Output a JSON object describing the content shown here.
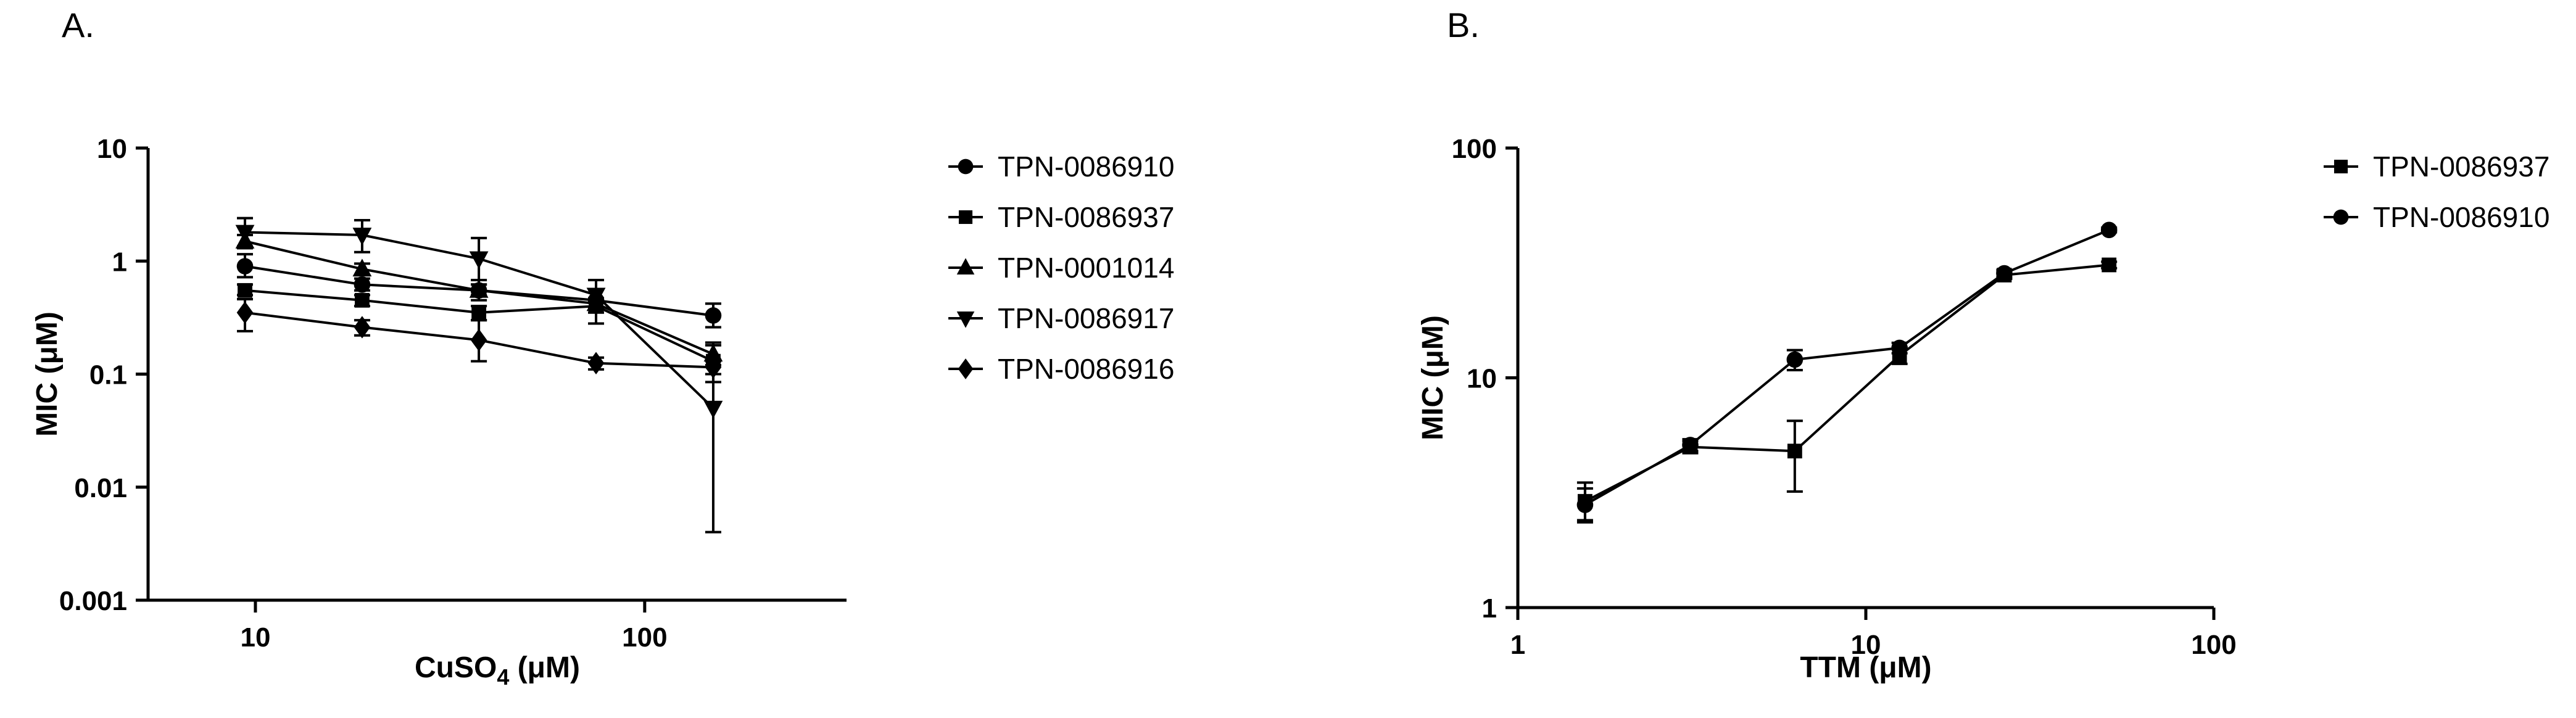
{
  "figure": {
    "background": "#ffffff",
    "ink": "#000000"
  },
  "panels": [
    {
      "label": "A.",
      "chart_data": {
        "type": "line",
        "x_scale": "log",
        "y_scale": "log",
        "xlabel": "CuSO₄ (μM)",
        "xlabel_parts": {
          "pre": "CuSO",
          "sub": "4",
          "post": " (μM)"
        },
        "ylabel": "MIC (μM)",
        "xlim": [
          5.3,
          330
        ],
        "ylim": [
          0.001,
          10
        ],
        "x_ticks": [
          {
            "value": 10,
            "label": "10"
          },
          {
            "value": 100,
            "label": "100"
          }
        ],
        "y_ticks": [
          {
            "value": 10,
            "label": "10"
          },
          {
            "value": 1,
            "label": "1"
          },
          {
            "value": 0.1,
            "label": "0.1"
          },
          {
            "value": 0.01,
            "label": "0.01"
          },
          {
            "value": 0.001,
            "label": "0.001"
          }
        ],
        "grid": false,
        "legend_position": "right",
        "series": [
          {
            "name": "TPN-0086910",
            "marker": "circle",
            "x": [
              9.4,
              18.8,
              37.5,
              75,
              150
            ],
            "y": [
              0.9,
              0.62,
              0.55,
              0.45,
              0.33
            ],
            "err_lo": [
              0.72,
              0.55,
              0.45,
              0.28,
              0.26
            ],
            "err_hi": [
              1.15,
              0.7,
              0.68,
              0.68,
              0.42
            ]
          },
          {
            "name": "TPN-0086937",
            "marker": "square",
            "x": [
              9.4,
              18.8,
              37.5,
              75,
              150
            ],
            "y": [
              0.55,
              0.45,
              0.35,
              0.4,
              0.13
            ],
            "err_lo": [
              0.5,
              0.4,
              0.3,
              0.35,
              0.085
            ],
            "err_hi": [
              0.62,
              0.5,
              0.4,
              0.45,
              0.19
            ]
          },
          {
            "name": "TPN-0001014",
            "marker": "triangle-up",
            "x": [
              9.4,
              18.8,
              37.5,
              75,
              150
            ],
            "y": [
              1.5,
              0.85,
              0.55,
              0.42,
              0.15
            ],
            "err_lo": [
              1.3,
              0.75,
              0.5,
              0.38,
              0.12
            ],
            "err_hi": [
              1.7,
              0.95,
              0.62,
              0.47,
              0.18
            ]
          },
          {
            "name": "TPN-0086917",
            "marker": "triangle-down",
            "x": [
              9.4,
              18.8,
              37.5,
              75,
              150
            ],
            "y": [
              1.8,
              1.7,
              1.05,
              0.5,
              0.05
            ],
            "err_lo": [
              1.35,
              1.2,
              0.62,
              0.45,
              0.004
            ],
            "err_hi": [
              2.4,
              2.3,
              1.6,
              0.56,
              0.1
            ]
          },
          {
            "name": "TPN-0086916",
            "marker": "diamond",
            "x": [
              9.4,
              18.8,
              37.5,
              75,
              150
            ],
            "y": [
              0.35,
              0.26,
              0.2,
              0.125,
              0.115
            ],
            "err_lo": [
              0.24,
              0.22,
              0.13,
              0.11,
              0.1
            ],
            "err_hi": [
              0.46,
              0.3,
              0.3,
              0.14,
              0.13
            ]
          }
        ]
      }
    },
    {
      "label": "B.",
      "chart_data": {
        "type": "line",
        "x_scale": "log",
        "y_scale": "log",
        "xlabel": "TTM (μM)",
        "ylabel": "MIC (μM)",
        "xlim": [
          1,
          100
        ],
        "ylim": [
          1,
          100
        ],
        "x_ticks": [
          {
            "value": 1,
            "label": "1"
          },
          {
            "value": 10,
            "label": "10"
          },
          {
            "value": 100,
            "label": "100"
          }
        ],
        "y_ticks": [
          {
            "value": 100,
            "label": "100"
          },
          {
            "value": 10,
            "label": "10"
          },
          {
            "value": 1,
            "label": "1"
          }
        ],
        "grid": false,
        "legend_position": "right",
        "series": [
          {
            "name": "TPN-0086937",
            "marker": "square",
            "x": [
              1.56,
              3.13,
              6.25,
              12.5,
              25,
              50
            ],
            "y": [
              2.9,
              5.0,
              4.8,
              12.5,
              28,
              31
            ],
            "err_lo": [
              2.35,
              4.7,
              3.2,
              11.5,
              27,
              30
            ],
            "err_hi": [
              3.5,
              5.3,
              6.5,
              13.5,
              29,
              32
            ]
          },
          {
            "name": "TPN-0086910",
            "marker": "circle",
            "x": [
              1.56,
              3.13,
              6.25,
              12.5,
              25,
              50
            ],
            "y": [
              2.8,
              5.1,
              12.0,
              13.5,
              28.5,
              44
            ],
            "err_lo": [
              2.4,
              4.8,
              10.8,
              12.8,
              27.5,
              43
            ],
            "err_hi": [
              3.3,
              5.4,
              13.2,
              14.2,
              29.5,
              45
            ]
          }
        ]
      }
    }
  ]
}
